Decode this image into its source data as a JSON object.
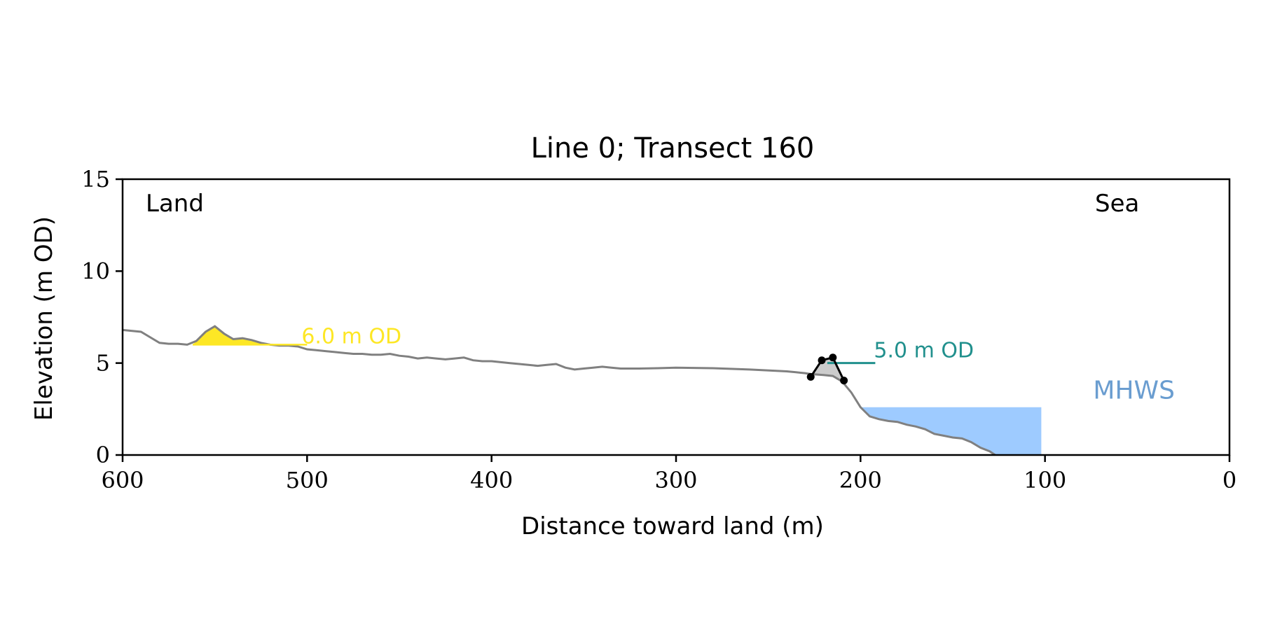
{
  "chart_data": {
    "type": "line",
    "title": "Line 0; Transect 160",
    "xlabel": "Distance toward land (m)",
    "ylabel": "Elevation (m OD)",
    "xlim": [
      600,
      0
    ],
    "ylim": [
      0,
      15
    ],
    "xticks": [
      600,
      500,
      400,
      300,
      200,
      100,
      0
    ],
    "yticks": [
      0,
      5,
      10,
      15
    ],
    "grid": false,
    "side_labels": {
      "left": "Land",
      "right": "Sea"
    },
    "colors": {
      "profile": "#808080",
      "dune_fill": "#fde725",
      "crest": "#000000",
      "crest_fill": "#cccccc",
      "crest_level": "#21908d",
      "mhws_fill": "#9ecbff",
      "mhws_text": "#6a9dd0"
    },
    "profile": {
      "x": [
        600,
        590,
        585,
        580,
        575,
        570,
        565,
        560,
        555,
        550,
        545,
        540,
        535,
        530,
        525,
        520,
        515,
        510,
        505,
        500,
        495,
        490,
        485,
        480,
        475,
        470,
        465,
        460,
        455,
        450,
        445,
        440,
        435,
        430,
        425,
        420,
        415,
        410,
        405,
        400,
        395,
        390,
        385,
        380,
        375,
        370,
        365,
        360,
        355,
        350,
        345,
        340,
        335,
        330,
        320,
        310,
        300,
        280,
        260,
        240,
        235,
        230,
        227,
        220,
        215,
        210,
        205,
        200,
        198,
        195,
        190,
        185,
        180,
        175,
        170,
        165,
        160,
        155,
        150,
        145,
        140,
        135,
        130,
        127
      ],
      "y": [
        6.8,
        6.7,
        6.4,
        6.1,
        6.05,
        6.05,
        6.0,
        6.2,
        6.7,
        7.0,
        6.6,
        6.3,
        6.35,
        6.25,
        6.1,
        6.0,
        5.95,
        5.95,
        5.9,
        5.75,
        5.7,
        5.65,
        5.6,
        5.55,
        5.5,
        5.5,
        5.45,
        5.45,
        5.5,
        5.4,
        5.35,
        5.25,
        5.3,
        5.25,
        5.2,
        5.25,
        5.3,
        5.15,
        5.1,
        5.1,
        5.05,
        5.0,
        4.95,
        4.9,
        4.85,
        4.9,
        4.95,
        4.75,
        4.65,
        4.7,
        4.75,
        4.8,
        4.75,
        4.7,
        4.7,
        4.72,
        4.75,
        4.72,
        4.65,
        4.55,
        4.5,
        4.45,
        4.4,
        4.35,
        4.3,
        4.0,
        3.4,
        2.6,
        2.4,
        2.1,
        1.95,
        1.85,
        1.8,
        1.65,
        1.55,
        1.4,
        1.15,
        1.05,
        0.95,
        0.9,
        0.7,
        0.4,
        0.2,
        0.0
      ]
    },
    "dune_region": {
      "level": 6.0,
      "label": "6.0 m OD",
      "x_start": 562,
      "x_end": 517,
      "line_x_end": 500
    },
    "crest": {
      "x": [
        227,
        221,
        215,
        209
      ],
      "y": [
        4.25,
        5.15,
        5.3,
        4.05
      ],
      "level": 5.0,
      "label": "5.0 m OD",
      "line_x": [
        218,
        192
      ]
    },
    "mhws": {
      "label": "MHWS",
      "level": 2.6,
      "x_from": 201,
      "x_to": 102
    }
  }
}
